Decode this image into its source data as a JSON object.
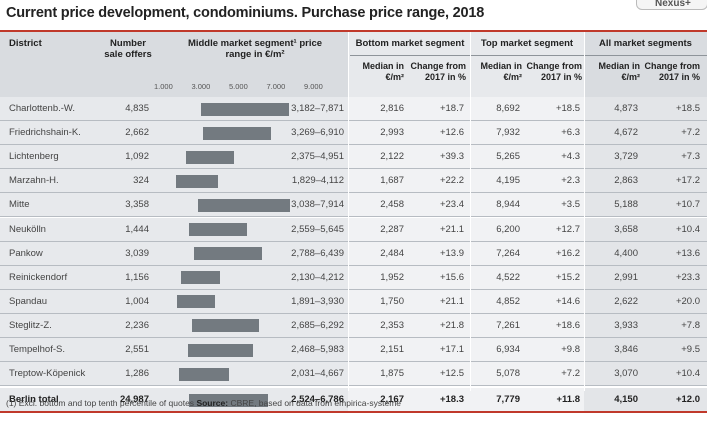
{
  "title": "Current price development, condominiums. Purchase price range, 2018",
  "corner_label": "Nexus+",
  "headers": {
    "district": "District",
    "offers": "Number sale offers",
    "middle": "Middle market segment¹ price range in €/m²",
    "bottom": "Bottom market segment",
    "top": "Top market segment",
    "all": "All market segments",
    "median": "Median in €/m²",
    "change": "Change from 2017 in %"
  },
  "ticks": [
    "1.000",
    "3.000",
    "5.000",
    "7.000",
    "9.000"
  ],
  "chart_data": {
    "type": "table",
    "columns": [
      "District",
      "Number sale offers",
      "Middle market segment price range in €/m²",
      "Bottom median €/m²",
      "Bottom change %",
      "Top median €/m²",
      "Top change %",
      "All median €/m²",
      "All change %"
    ],
    "scale": [
      1000,
      9000
    ],
    "rows": [
      {
        "district": "Charlottenb.-W.",
        "offers": "4,835",
        "low": 3182,
        "high": 7871,
        "range": "3,182–7,871",
        "b_med": "2,816",
        "b_chg": "+18.7",
        "t_med": "8,692",
        "t_chg": "+18.5",
        "a_med": "4,873",
        "a_chg": "+18.5"
      },
      {
        "district": "Friedrichshain-K.",
        "offers": "2,662",
        "low": 3269,
        "high": 6910,
        "range": "3,269–6,910",
        "b_med": "2,993",
        "b_chg": "+12.6",
        "t_med": "7,932",
        "t_chg": "+6.3",
        "a_med": "4,672",
        "a_chg": "+7.2"
      },
      {
        "district": "Lichtenberg",
        "offers": "1,092",
        "low": 2375,
        "high": 4951,
        "range": "2,375–4,951",
        "b_med": "2,122",
        "b_chg": "+39.3",
        "t_med": "5,265",
        "t_chg": "+4.3",
        "a_med": "3,729",
        "a_chg": "+7.3"
      },
      {
        "district": "Marzahn-H.",
        "offers": "324",
        "low": 1829,
        "high": 4112,
        "range": "1,829–4,112",
        "b_med": "1,687",
        "b_chg": "+22.2",
        "t_med": "4,195",
        "t_chg": "+2.3",
        "a_med": "2,863",
        "a_chg": "+17.2"
      },
      {
        "district": "Mitte",
        "offers": "3,358",
        "low": 3038,
        "high": 7914,
        "range": "3,038–7,914",
        "b_med": "2,458",
        "b_chg": "+23.4",
        "t_med": "8,944",
        "t_chg": "+3.5",
        "a_med": "5,188",
        "a_chg": "+10.7"
      },
      {
        "district": "Neukölln",
        "offers": "1,444",
        "low": 2559,
        "high": 5645,
        "range": "2,559–5,645",
        "b_med": "2,287",
        "b_chg": "+21.1",
        "t_med": "6,200",
        "t_chg": "+12.7",
        "a_med": "3,658",
        "a_chg": "+10.4"
      },
      {
        "district": "Pankow",
        "offers": "3,039",
        "low": 2788,
        "high": 6439,
        "range": "2,788–6,439",
        "b_med": "2,484",
        "b_chg": "+13.9",
        "t_med": "7,264",
        "t_chg": "+16.2",
        "a_med": "4,400",
        "a_chg": "+13.6"
      },
      {
        "district": "Reinickendorf",
        "offers": "1,156",
        "low": 2130,
        "high": 4212,
        "range": "2,130–4,212",
        "b_med": "1,952",
        "b_chg": "+15.6",
        "t_med": "4,522",
        "t_chg": "+15.2",
        "a_med": "2,991",
        "a_chg": "+23.3"
      },
      {
        "district": "Spandau",
        "offers": "1,004",
        "low": 1891,
        "high": 3930,
        "range": "1,891–3,930",
        "b_med": "1,750",
        "b_chg": "+21.1",
        "t_med": "4,852",
        "t_chg": "+14.6",
        "a_med": "2,622",
        "a_chg": "+20.0"
      },
      {
        "district": "Steglitz-Z.",
        "offers": "2,236",
        "low": 2685,
        "high": 6292,
        "range": "2,685–6,292",
        "b_med": "2,353",
        "b_chg": "+21.8",
        "t_med": "7,261",
        "t_chg": "+18.6",
        "a_med": "3,933",
        "a_chg": "+7.8"
      },
      {
        "district": "Tempelhof-S.",
        "offers": "2,551",
        "low": 2468,
        "high": 5983,
        "range": "2,468–5,983",
        "b_med": "2,151",
        "b_chg": "+17.1",
        "t_med": "6,934",
        "t_chg": "+9.8",
        "a_med": "3,846",
        "a_chg": "+9.5"
      },
      {
        "district": "Treptow-Köpenick",
        "offers": "1,286",
        "low": 2031,
        "high": 4667,
        "range": "2,031–4,667",
        "b_med": "1,875",
        "b_chg": "+12.5",
        "t_med": "5,078",
        "t_chg": "+7.2",
        "a_med": "3,070",
        "a_chg": "+10.4"
      }
    ],
    "total": {
      "district": "Berlin total",
      "offers": "24,987",
      "low": 2524,
      "high": 6786,
      "range": "2,524–6,786",
      "b_med": "2,167",
      "b_chg": "+18.3",
      "t_med": "7,779",
      "t_chg": "+11.8",
      "a_med": "4,150",
      "a_chg": "+12.0"
    }
  },
  "footer": {
    "note": "(1) Excl. bottom and top tenth percentile of quotes",
    "source_label": "Source:",
    "source": "CBRE, based on data from empirica-systeme"
  },
  "colors": {
    "accent": "#c0392b",
    "bar": "#737a80",
    "shade_light": "#e7e9ec",
    "shade_dark": "#d9dce0"
  }
}
